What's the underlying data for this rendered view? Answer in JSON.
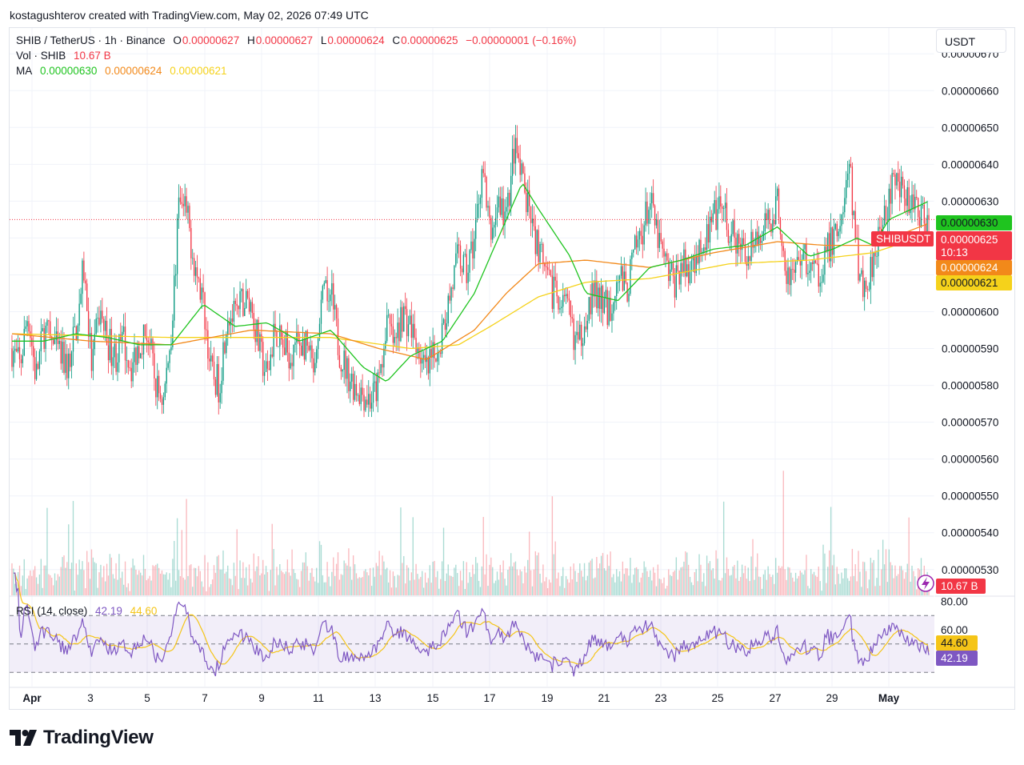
{
  "header": {
    "created_text": "kostagushterov created with TradingView.com, May 02, 2026 07:49 UTC"
  },
  "legend": {
    "symbol": "SHIB / TetherUS · 1h · Binance",
    "o_label": "O",
    "o_value": "0.00000627",
    "h_label": "H",
    "h_value": "0.00000627",
    "l_label": "L",
    "l_value": "0.00000624",
    "c_label": "C",
    "c_value": "0.00000625",
    "change": "−0.00000001 (−0.16%)",
    "vol_label": "Vol · SHIB",
    "vol_value": "10.67 B",
    "ma_label": "MA",
    "ma1": "0.00000630",
    "ma2": "0.00000624",
    "ma3": "0.00000621"
  },
  "currency_button": {
    "label": "USDT"
  },
  "rsi_legend": {
    "label": "RSI (14, close)",
    "rsi": "42.19",
    "ma": "44.60"
  },
  "price_badges": {
    "ma1": "0.00000630",
    "symbol": "SHIBUSDT",
    "last": "0.00000625",
    "countdown": "10:13",
    "ma2": "0.00000624",
    "ma3": "0.00000621",
    "volume": "10.67 B"
  },
  "rsi_badges": {
    "ma": "44.60",
    "rsi": "42.19"
  },
  "brand": {
    "name": "TradingView"
  },
  "colors": {
    "up": "#089981",
    "down": "#f23645",
    "ma1": "#1fc41f",
    "ma2": "#f2891a",
    "ma3": "#f5d21b",
    "rsi": "#7e57c2",
    "rsi_ma": "#f5c518"
  },
  "chart_data": {
    "type": "candlestick",
    "symbol": "SHIB / TetherUS",
    "interval": "1h",
    "exchange": "Binance",
    "x_ticks": [
      "Apr",
      "3",
      "5",
      "7",
      "9",
      "11",
      "13",
      "15",
      "17",
      "19",
      "21",
      "23",
      "25",
      "27",
      "29",
      "May"
    ],
    "y_ticks": [
      "0.00000670",
      "0.00000660",
      "0.00000650",
      "0.00000640",
      "0.00000630",
      "0.00000620",
      "0.00000610",
      "0.00000600",
      "0.00000590",
      "0.00000580",
      "0.00000570",
      "0.00000560",
      "0.00000550",
      "0.00000540",
      "0.00000530"
    ],
    "ylim": [
      5.23e-06,
      6.77e-06
    ],
    "price_path": [
      [
        0,
        5.9e-06
      ],
      [
        1,
        5.85e-06
      ],
      [
        2,
        6e-06
      ],
      [
        3,
        5.82e-06
      ],
      [
        4,
        5.95e-06
      ],
      [
        5,
        5.92e-06
      ],
      [
        6,
        5.88e-06
      ],
      [
        7,
        5.85e-06
      ],
      [
        8,
        5.95e-06
      ],
      [
        9,
        6.12e-06
      ],
      [
        10,
        5.85e-06
      ],
      [
        11,
        6e-06
      ],
      [
        12,
        5.92e-06
      ],
      [
        13,
        5.88e-06
      ],
      [
        14,
        5.92e-06
      ],
      [
        15,
        5.85e-06
      ],
      [
        16,
        5.92e-06
      ],
      [
        17,
        5.95e-06
      ],
      [
        18,
        5.8e-06
      ],
      [
        19,
        5.76e-06
      ],
      [
        20,
        5.95e-06
      ],
      [
        21,
        6.3e-06
      ],
      [
        22,
        6.25e-06
      ],
      [
        23,
        6.12e-06
      ],
      [
        24,
        6.02e-06
      ],
      [
        25,
        5.83e-06
      ],
      [
        26,
        5.8e-06
      ],
      [
        27,
        6e-06
      ],
      [
        28,
        5.98e-06
      ],
      [
        29,
        6.03e-06
      ],
      [
        30,
        6.02e-06
      ],
      [
        31,
        5.9e-06
      ],
      [
        32,
        5.82e-06
      ],
      [
        33,
        5.96e-06
      ],
      [
        34,
        5.9e-06
      ],
      [
        35,
        5.89e-06
      ],
      [
        36,
        5.92e-06
      ],
      [
        37,
        5.9e-06
      ],
      [
        38,
        5.82e-06
      ],
      [
        39,
        6.03e-06
      ],
      [
        40,
        6.05e-06
      ],
      [
        41,
        5.9e-06
      ],
      [
        42,
        5.84e-06
      ],
      [
        43,
        5.8e-06
      ],
      [
        44,
        5.78e-06
      ],
      [
        45,
        5.76e-06
      ],
      [
        46,
        5.8e-06
      ],
      [
        47,
        5.98e-06
      ],
      [
        48,
        5.9e-06
      ],
      [
        49,
        6e-06
      ],
      [
        50,
        5.96e-06
      ],
      [
        51,
        5.9e-06
      ],
      [
        52,
        5.83e-06
      ],
      [
        53,
        5.88e-06
      ],
      [
        54,
        5.95e-06
      ],
      [
        55,
        6.05e-06
      ],
      [
        56,
        6.15e-06
      ],
      [
        57,
        6.1e-06
      ],
      [
        58,
        6.2e-06
      ],
      [
        59,
        6.4e-06
      ],
      [
        60,
        6.2e-06
      ],
      [
        61,
        6.3e-06
      ],
      [
        62,
        6.25e-06
      ],
      [
        63,
        6.45e-06
      ],
      [
        64,
        6.35e-06
      ],
      [
        65,
        6.25e-06
      ],
      [
        66,
        6.18e-06
      ],
      [
        67,
        6.08e-06
      ],
      [
        68,
        6.05e-06
      ],
      [
        69,
        6.03e-06
      ],
      [
        70,
        5.98e-06
      ],
      [
        71,
        5.9e-06
      ],
      [
        72,
        6e-06
      ],
      [
        73,
        6.05e-06
      ],
      [
        74,
        6.02e-06
      ],
      [
        75,
        6e-06
      ],
      [
        76,
        6.12e-06
      ],
      [
        77,
        6.05e-06
      ],
      [
        78,
        6.15e-06
      ],
      [
        79,
        6.22e-06
      ],
      [
        80,
        6.3e-06
      ],
      [
        81,
        6.2e-06
      ],
      [
        82,
        6.12e-06
      ],
      [
        83,
        6.08e-06
      ],
      [
        84,
        6.13e-06
      ],
      [
        85,
        6.1e-06
      ],
      [
        86,
        6.18e-06
      ],
      [
        87,
        6.2e-06
      ],
      [
        88,
        6.25e-06
      ],
      [
        89,
        6.28e-06
      ],
      [
        90,
        6.22e-06
      ],
      [
        91,
        6.17e-06
      ],
      [
        92,
        6.15e-06
      ],
      [
        93,
        6.22e-06
      ],
      [
        94,
        6.2e-06
      ],
      [
        95,
        6.25e-06
      ],
      [
        96,
        6.3e-06
      ],
      [
        97,
        6.12e-06
      ],
      [
        98,
        6.1e-06
      ],
      [
        99,
        6.16e-06
      ],
      [
        100,
        6.12e-06
      ],
      [
        101,
        6.1e-06
      ],
      [
        102,
        6.15e-06
      ],
      [
        103,
        6.2e-06
      ],
      [
        104,
        6.25e-06
      ],
      [
        105,
        6.4e-06
      ],
      [
        106,
        6.15e-06
      ],
      [
        107,
        6.05e-06
      ],
      [
        108,
        6.15e-06
      ],
      [
        109,
        6.25e-06
      ],
      [
        110,
        6.3e-06
      ],
      [
        111,
        6.38e-06
      ],
      [
        112,
        6.32e-06
      ],
      [
        113,
        6.3e-06
      ],
      [
        114,
        6.27e-06
      ],
      [
        115,
        6.25e-06
      ]
    ],
    "ma_fast": [
      [
        0,
        5.92e-06
      ],
      [
        4,
        5.92e-06
      ],
      [
        8,
        5.94e-06
      ],
      [
        12,
        5.93e-06
      ],
      [
        16,
        5.91e-06
      ],
      [
        20,
        5.91e-06
      ],
      [
        24,
        6.02e-06
      ],
      [
        28,
        5.96e-06
      ],
      [
        32,
        5.97e-06
      ],
      [
        36,
        5.92e-06
      ],
      [
        40,
        5.95e-06
      ],
      [
        44,
        5.85e-06
      ],
      [
        47,
        5.81e-06
      ],
      [
        50,
        5.88e-06
      ],
      [
        54,
        5.92e-06
      ],
      [
        58,
        6.05e-06
      ],
      [
        62,
        6.25e-06
      ],
      [
        64,
        6.35e-06
      ],
      [
        66,
        6.28e-06
      ],
      [
        70,
        6.15e-06
      ],
      [
        72,
        6.05e-06
      ],
      [
        76,
        6.03e-06
      ],
      [
        80,
        6.12e-06
      ],
      [
        84,
        6.14e-06
      ],
      [
        88,
        6.17e-06
      ],
      [
        92,
        6.18e-06
      ],
      [
        96,
        6.23e-06
      ],
      [
        100,
        6.15e-06
      ],
      [
        103,
        6.17e-06
      ],
      [
        106,
        6.2e-06
      ],
      [
        108,
        6.18e-06
      ],
      [
        110,
        6.25e-06
      ],
      [
        113,
        6.28e-06
      ],
      [
        115,
        6.3e-06
      ]
    ],
    "ma_mid": [
      [
        0,
        5.94e-06
      ],
      [
        10,
        5.92e-06
      ],
      [
        20,
        5.91e-06
      ],
      [
        30,
        5.95e-06
      ],
      [
        40,
        5.94e-06
      ],
      [
        46,
        5.9e-06
      ],
      [
        52,
        5.87e-06
      ],
      [
        58,
        5.95e-06
      ],
      [
        62,
        6.05e-06
      ],
      [
        66,
        6.13e-06
      ],
      [
        72,
        6.14e-06
      ],
      [
        80,
        6.12e-06
      ],
      [
        88,
        6.16e-06
      ],
      [
        96,
        6.19e-06
      ],
      [
        102,
        6.18e-06
      ],
      [
        108,
        6.18e-06
      ],
      [
        115,
        6.24e-06
      ]
    ],
    "ma_slow": [
      [
        0,
        5.94e-06
      ],
      [
        20,
        5.93e-06
      ],
      [
        40,
        5.93e-06
      ],
      [
        50,
        5.9e-06
      ],
      [
        56,
        5.91e-06
      ],
      [
        60,
        5.96e-06
      ],
      [
        66,
        6.04e-06
      ],
      [
        72,
        6.08e-06
      ],
      [
        80,
        6.09e-06
      ],
      [
        90,
        6.13e-06
      ],
      [
        100,
        6.14e-06
      ],
      [
        108,
        6.16e-06
      ],
      [
        115,
        6.21e-06
      ]
    ],
    "last_price": 6.25e-06,
    "rsi": {
      "period": 14,
      "y_ticks": [
        "80.00",
        "60.00"
      ],
      "bands": [
        70,
        50,
        30
      ],
      "ylim": [
        20,
        82
      ],
      "last_rsi": 42.19,
      "last_ma": 44.6
    }
  }
}
